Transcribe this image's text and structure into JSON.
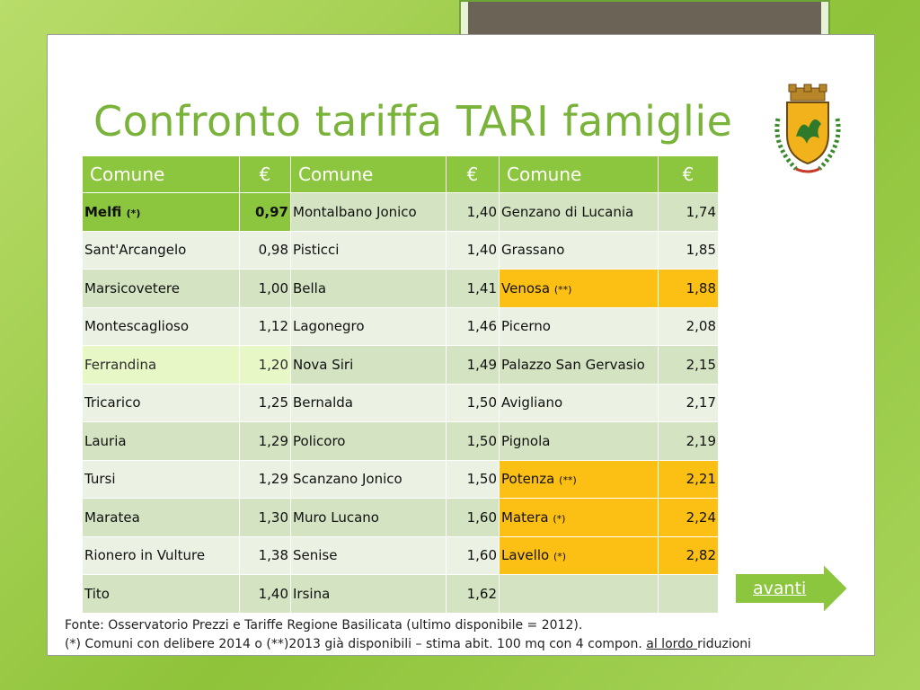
{
  "title": "Confronto tariffa TARI famiglie",
  "table": {
    "headers": [
      "Comune",
      "€",
      "Comune",
      "€",
      "Comune",
      "€"
    ],
    "rows": [
      {
        "c1": "Melfi",
        "n1": "(*)",
        "v1": "0,97",
        "c2": "Montalbano Jonico",
        "v2": "1,40",
        "c3": "Genzano di Lucania",
        "n3": "",
        "v3": "1,74"
      },
      {
        "c1": "Sant'Arcangelo",
        "n1": "",
        "v1": "0,98",
        "c2": "Pisticci",
        "v2": "1,40",
        "c3": "Grassano",
        "n3": "",
        "v3": "1,85"
      },
      {
        "c1": "Marsicovetere",
        "n1": "",
        "v1": "1,00",
        "c2": "Bella",
        "v2": "1,41",
        "c3": "Venosa",
        "n3": "(**)",
        "v3": "1,88"
      },
      {
        "c1": "Montescaglioso",
        "n1": "",
        "v1": "1,12",
        "c2": "Lagonegro",
        "v2": "1,46",
        "c3": "Picerno",
        "n3": "",
        "v3": "2,08"
      },
      {
        "c1": "Ferrandina",
        "n1": "",
        "v1": "1,20",
        "c2": "Nova Siri",
        "v2": "1,49",
        "c3": "Palazzo San Gervasio",
        "n3": "",
        "v3": "2,15"
      },
      {
        "c1": "Tricarico",
        "n1": "",
        "v1": "1,25",
        "c2": "Bernalda",
        "v2": "1,50",
        "c3": "Avigliano",
        "n3": "",
        "v3": "2,17"
      },
      {
        "c1": "Lauria",
        "n1": "",
        "v1": "1,29",
        "c2": "Policoro",
        "v2": "1,50",
        "c3": "Pignola",
        "n3": "",
        "v3": "2,19"
      },
      {
        "c1": "Tursi",
        "n1": "",
        "v1": "1,29",
        "c2": "Scanzano Jonico",
        "v2": "1,50",
        "c3": "Potenza",
        "n3": "(**)",
        "v3": "2,21"
      },
      {
        "c1": "Maratea",
        "n1": "",
        "v1": "1,30",
        "c2": "Muro Lucano",
        "v2": "1,60",
        "c3": "Matera",
        "n3": "(*)",
        "v3": "2,24"
      },
      {
        "c1": "Rionero in Vulture",
        "n1": "",
        "v1": "1,38",
        "c2": "Senise",
        "v2": "1,60",
        "c3": "Lavello",
        "n3": "(*)",
        "v3": "2,82"
      },
      {
        "c1": "Tito",
        "n1": "",
        "v1": "1,40",
        "c2": "Irsina",
        "v2": "1,62",
        "c3": "",
        "n3": "",
        "v3": ""
      }
    ]
  },
  "highlights": {
    "green_row_col1": 0,
    "light_green_row_col1": 4,
    "orange_rows_col3": [
      2,
      7,
      8,
      9
    ],
    "colors": {
      "header": "#8cc63e",
      "orange": "#fcbf14",
      "light_green": "#e7f7c6",
      "title": "#79b33a"
    }
  },
  "nav": {
    "next_label": "avanti"
  },
  "footer": {
    "line1": "Fonte: Osservatorio Prezzi e Tariffe Regione Basilicata (ultimo disponibile = 2012).",
    "line2_a": "(*) Comuni con delibere 2014 o (**)2013 già disponibili – stima abit. 100 mq con 4 compon. ",
    "line2_link": "al lordo ",
    "line2_b": "riduzioni"
  }
}
